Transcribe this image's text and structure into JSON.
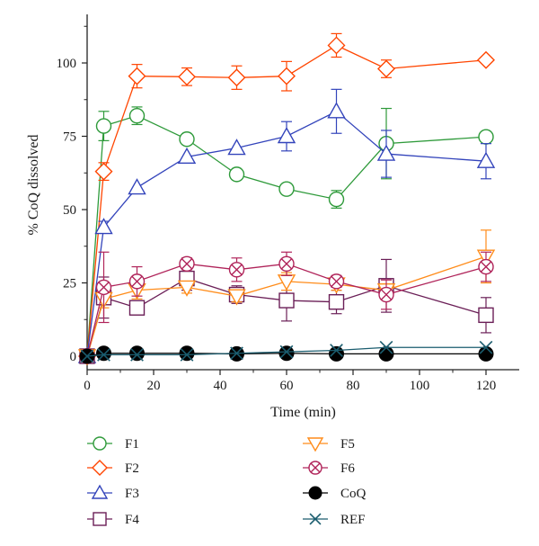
{
  "chart_data": {
    "type": "line",
    "title": "",
    "xlabel": "Time (min)",
    "ylabel": "% CoQ dissolved",
    "xlim": [
      0,
      130
    ],
    "ylim": [
      0,
      115
    ],
    "xticks": [
      0,
      20,
      40,
      60,
      80,
      100,
      120
    ],
    "yticks": [
      0,
      25,
      50,
      75,
      100
    ],
    "grid": false,
    "legend_placement": "below",
    "series": [
      {
        "name": "F1",
        "color": "#2e9a3a",
        "marker": "circle",
        "x": [
          0,
          5,
          15,
          30,
          45,
          60,
          75,
          90,
          120
        ],
        "y": [
          0,
          78.5,
          82,
          74,
          62,
          57,
          53.5,
          72.5,
          74.8
        ],
        "err": [
          0,
          5,
          3,
          0,
          0,
          0,
          3,
          12,
          0
        ]
      },
      {
        "name": "F2",
        "color": "#ff4500",
        "marker": "diamond",
        "x": [
          0,
          5,
          15,
          30,
          45,
          60,
          75,
          90,
          120
        ],
        "y": [
          0,
          63,
          95.5,
          95.3,
          95,
          95.5,
          106,
          98,
          101
        ],
        "err": [
          0,
          3,
          4,
          3,
          4,
          5,
          4,
          3,
          0
        ]
      },
      {
        "name": "F3",
        "color": "#3344bb",
        "marker": "triangle-up",
        "x": [
          0,
          5,
          15,
          30,
          45,
          60,
          75,
          90,
          120
        ],
        "y": [
          0,
          44,
          57.5,
          68,
          71,
          75,
          83.5,
          69,
          66.5
        ],
        "err": [
          0,
          2,
          0,
          0,
          0,
          5,
          7.5,
          8,
          6
        ]
      },
      {
        "name": "F4",
        "color": "#6b1f57",
        "marker": "square",
        "x": [
          0,
          5,
          15,
          30,
          45,
          60,
          75,
          90,
          120
        ],
        "y": [
          0,
          20,
          16.5,
          26.5,
          21,
          19,
          18.5,
          24,
          14
        ],
        "err": [
          0,
          7,
          0,
          4,
          3,
          7,
          4,
          9,
          6
        ]
      },
      {
        "name": "F5",
        "color": "#ff8c1a",
        "marker": "triangle-down",
        "x": [
          0,
          5,
          15,
          30,
          45,
          60,
          75,
          90,
          120
        ],
        "y": [
          0,
          19.5,
          22.5,
          23.5,
          20.5,
          25.5,
          24.5,
          22.5,
          34
        ],
        "err": [
          0,
          3,
          3,
          2,
          2,
          3,
          2,
          2,
          9
        ]
      },
      {
        "name": "F6",
        "color": "#b0245a",
        "marker": "circle-x",
        "x": [
          0,
          5,
          15,
          30,
          45,
          60,
          75,
          90,
          120
        ],
        "y": [
          0,
          23.5,
          25.5,
          31.5,
          29.5,
          31.5,
          25.5,
          21,
          30.5
        ],
        "err": [
          0,
          12,
          5,
          2,
          4,
          4,
          2,
          5,
          5
        ]
      },
      {
        "name": "CoQ",
        "color": "#000000",
        "marker": "filled-circle",
        "x": [
          0,
          5,
          15,
          30,
          45,
          60,
          75,
          90,
          120
        ],
        "y": [
          0,
          1,
          1,
          1,
          0.8,
          1,
          0.8,
          0.8,
          0.8
        ],
        "err": [
          0,
          0,
          0,
          0,
          0,
          0,
          0,
          0,
          0
        ]
      },
      {
        "name": "REF",
        "color": "#1a5c6e",
        "marker": "x",
        "x": [
          0,
          5,
          15,
          30,
          45,
          60,
          75,
          90,
          120
        ],
        "y": [
          0,
          0.5,
          0.5,
          0.5,
          1,
          1.5,
          2,
          3,
          3
        ],
        "err": [
          0,
          0,
          0,
          0,
          0,
          0,
          0,
          0,
          0
        ]
      }
    ]
  }
}
